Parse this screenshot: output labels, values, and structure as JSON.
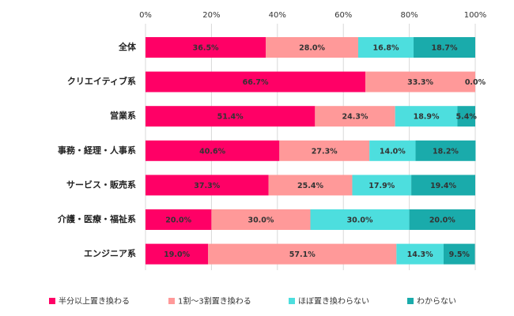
{
  "chart_data": {
    "type": "stacked-bar-horizontal",
    "categories": [
      "全体",
      "クリエイティブ系",
      "営業系",
      "事務・経理・人事系",
      "サービス・販売系",
      "介護・医療・福祉系",
      "エンジニア系"
    ],
    "series": [
      {
        "name": "半分以上置き換わる",
        "color": "#ff0066",
        "values": [
          36.5,
          66.7,
          51.4,
          40.6,
          37.3,
          20.0,
          19.0
        ],
        "value_labels": [
          "36.5%",
          "66.7%",
          "51.4%",
          "40.6%",
          "37.3%",
          "20.0%",
          "19.0%"
        ]
      },
      {
        "name": "1割～3割置き換わる",
        "color": "#ff9999",
        "values": [
          28.0,
          33.3,
          24.3,
          27.3,
          25.4,
          30.0,
          57.1
        ],
        "value_labels": [
          "28.0%",
          "33.3%",
          "24.3%",
          "27.3%",
          "25.4%",
          "30.0%",
          "57.1%"
        ]
      },
      {
        "name": "ほぼ置き換わらない",
        "color": "#4ddede",
        "values": [
          16.8,
          0.0,
          18.9,
          14.0,
          17.9,
          30.0,
          14.3
        ],
        "value_labels": [
          "16.8%",
          "0.0%",
          "18.9%",
          "14.0%",
          "17.9%",
          "30.0%",
          "14.3%"
        ]
      },
      {
        "name": "わからない",
        "color": "#1aabab",
        "values": [
          18.7,
          null,
          5.4,
          18.2,
          19.4,
          20.0,
          9.5
        ],
        "value_labels": [
          "18.7%",
          null,
          "5.4%",
          "18.2%",
          "19.4%",
          "20.0%",
          "9.5%"
        ]
      }
    ],
    "xlim": [
      0,
      100
    ],
    "xticks": [
      {
        "value": 0,
        "label": "0%"
      },
      {
        "value": 20,
        "label": "20%"
      },
      {
        "value": 40,
        "label": "40%"
      },
      {
        "value": 60,
        "label": "60%"
      },
      {
        "value": 80,
        "label": "80%"
      },
      {
        "value": 100,
        "label": "100%"
      }
    ],
    "grid": true,
    "legend": "bottom"
  }
}
